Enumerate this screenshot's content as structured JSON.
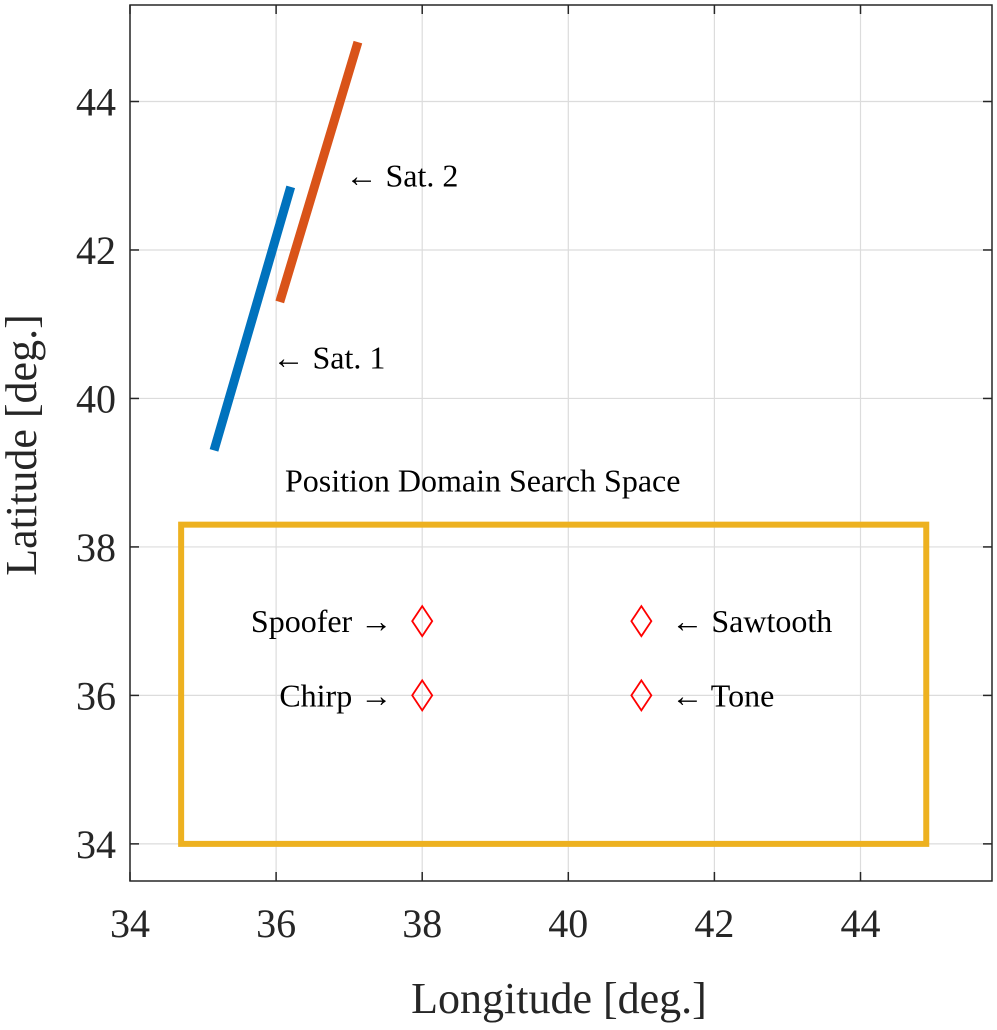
{
  "chart_data": {
    "type": "line",
    "xlabel": "Longitude [deg.]",
    "ylabel": "Latitude [deg.]",
    "xlim": [
      34,
      45.8
    ],
    "ylim": [
      33.5,
      45.3
    ],
    "xticks": [
      34,
      36,
      38,
      40,
      42,
      44
    ],
    "yticks": [
      34,
      36,
      38,
      40,
      42,
      44
    ],
    "grid": true,
    "series": [
      {
        "name": "Sat. 1",
        "color": "#0072BD",
        "x": [
          35.15,
          36.2
        ],
        "y": [
          39.3,
          42.85
        ]
      },
      {
        "name": "Sat. 2",
        "color": "#D95319",
        "x": [
          36.05,
          37.12
        ],
        "y": [
          41.3,
          44.8
        ]
      }
    ],
    "search_space": {
      "label": "Position Domain Search Space",
      "color": "#EDB120",
      "x_range": [
        34.7,
        44.9
      ],
      "y_range": [
        34.0,
        38.3
      ]
    },
    "markers": [
      {
        "label": "Spoofer →",
        "x": 38,
        "y": 37,
        "label_side": "left"
      },
      {
        "label": "Chirp →",
        "x": 38,
        "y": 36,
        "label_side": "left"
      },
      {
        "label": "← Sawtooth",
        "x": 41,
        "y": 37,
        "label_side": "right"
      },
      {
        "label": "← Tone",
        "x": 41,
        "y": 36,
        "label_side": "right"
      }
    ],
    "marker_color": "#FF0000",
    "annotations": [
      {
        "text": "← Sat. 1",
        "x": 35.95,
        "y": 40.55
      },
      {
        "text": "← Sat. 2",
        "x": 36.95,
        "y": 43.0
      }
    ]
  }
}
